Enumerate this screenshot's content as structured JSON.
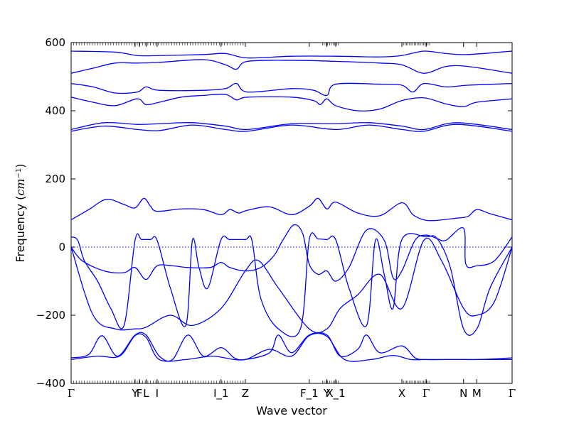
{
  "chart_data": {
    "type": "line",
    "title": "",
    "xlabel": "Wave vector",
    "ylabel_main": "Frequency (",
    "ylabel_unit": "cm",
    "ylabel_exp": "−1",
    "ylabel_close": ")",
    "ylim": [
      -400,
      600
    ],
    "yticks": [
      -400,
      -200,
      0,
      200,
      400,
      600
    ],
    "ytick_labels": [
      "−400",
      "−200",
      "0",
      "200",
      "400",
      "600"
    ],
    "grid": false,
    "line_color": "#0000ff",
    "zero_line_color": "#0000ff",
    "xlim": [
      0,
      20
    ],
    "high_symmetry_points": [
      {
        "label": "Γ",
        "x": 0
      },
      {
        "label": "Y",
        "x": 2.9
      },
      {
        "label": "F",
        "x": 3.1
      },
      {
        "label": "L",
        "x": 3.4
      },
      {
        "label": "I",
        "x": 3.9
      },
      {
        "label": "I_1",
        "x": 6.8
      },
      {
        "label": "Z",
        "x": 7.9
      },
      {
        "label": "F_1",
        "x": 10.8
      },
      {
        "label": "Y",
        "x": 11.6
      },
      {
        "label": "X_1",
        "x": 12.0
      },
      {
        "label": "X",
        "x": 15.0
      },
      {
        "label": "Γ",
        "x": 16.1
      },
      {
        "label": "N",
        "x": 17.8
      },
      {
        "label": "M",
        "x": 18.4
      },
      {
        "label": "Γ",
        "x": 20.0
      }
    ],
    "series": [
      {
        "values": [
          [
            0,
            575
          ],
          [
            2,
            572
          ],
          [
            3,
            562
          ],
          [
            4,
            562
          ],
          [
            6,
            565
          ],
          [
            7,
            568
          ],
          [
            8,
            555
          ],
          [
            10,
            560
          ],
          [
            12,
            560
          ],
          [
            14,
            558
          ],
          [
            15,
            562
          ],
          [
            16,
            575
          ],
          [
            17,
            568
          ],
          [
            18,
            565
          ],
          [
            20,
            575
          ]
        ]
      },
      {
        "values": [
          [
            0,
            510
          ],
          [
            1,
            525
          ],
          [
            2,
            540
          ],
          [
            3,
            540
          ],
          [
            4,
            542
          ],
          [
            6,
            550
          ],
          [
            7,
            535
          ],
          [
            7.5,
            522
          ],
          [
            8,
            545
          ],
          [
            10,
            548
          ],
          [
            12,
            545
          ],
          [
            14,
            540
          ],
          [
            15,
            535
          ],
          [
            16,
            510
          ],
          [
            17,
            530
          ],
          [
            18,
            530
          ],
          [
            20,
            510
          ]
        ]
      },
      {
        "values": [
          [
            0,
            480
          ],
          [
            1,
            470
          ],
          [
            2,
            452
          ],
          [
            3,
            455
          ],
          [
            3.4,
            470
          ],
          [
            4,
            460
          ],
          [
            6,
            460
          ],
          [
            7,
            465
          ],
          [
            7.5,
            480
          ],
          [
            8,
            455
          ],
          [
            10,
            465
          ],
          [
            11,
            460
          ],
          [
            11.6,
            445
          ],
          [
            12,
            478
          ],
          [
            14,
            478
          ],
          [
            15,
            475
          ],
          [
            15.5,
            455
          ],
          [
            16,
            480
          ],
          [
            17,
            470
          ],
          [
            18,
            475
          ],
          [
            20,
            480
          ]
        ]
      },
      {
        "values": [
          [
            0,
            440
          ],
          [
            1,
            425
          ],
          [
            2,
            415
          ],
          [
            3,
            435
          ],
          [
            3.4,
            418
          ],
          [
            4,
            425
          ],
          [
            5,
            440
          ],
          [
            6,
            445
          ],
          [
            7,
            448
          ],
          [
            7.5,
            432
          ],
          [
            8,
            440
          ],
          [
            10,
            440
          ],
          [
            11,
            430
          ],
          [
            11.3,
            418
          ],
          [
            11.6,
            435
          ],
          [
            12,
            415
          ],
          [
            13,
            400
          ],
          [
            14,
            405
          ],
          [
            15,
            430
          ],
          [
            16,
            438
          ],
          [
            17,
            420
          ],
          [
            17.8,
            412
          ],
          [
            18.4,
            425
          ],
          [
            20,
            435
          ]
        ]
      },
      {
        "values": [
          [
            0,
            345
          ],
          [
            1.5,
            365
          ],
          [
            3,
            360
          ],
          [
            4,
            362
          ],
          [
            5.5,
            365
          ],
          [
            7,
            355
          ],
          [
            8,
            345
          ],
          [
            10,
            362
          ],
          [
            12,
            362
          ],
          [
            13.5,
            365
          ],
          [
            15,
            355
          ],
          [
            16,
            345
          ],
          [
            17.5,
            365
          ],
          [
            20,
            345
          ]
        ]
      },
      {
        "values": [
          [
            0,
            340
          ],
          [
            1.5,
            355
          ],
          [
            3,
            345
          ],
          [
            4,
            342
          ],
          [
            5.5,
            358
          ],
          [
            7,
            345
          ],
          [
            8,
            340
          ],
          [
            10,
            358
          ],
          [
            12,
            345
          ],
          [
            13.5,
            358
          ],
          [
            15,
            345
          ],
          [
            16,
            340
          ],
          [
            17.5,
            360
          ],
          [
            20,
            340
          ]
        ]
      },
      {
        "values": [
          [
            0,
            80
          ],
          [
            0.8,
            110
          ],
          [
            1.6,
            140
          ],
          [
            2.4,
            125
          ],
          [
            2.9,
            115
          ],
          [
            3.3,
            143
          ],
          [
            3.6,
            120
          ],
          [
            3.9,
            105
          ],
          [
            5,
            112
          ],
          [
            6,
            110
          ],
          [
            6.8,
            95
          ],
          [
            7.2,
            110
          ],
          [
            7.6,
            100
          ],
          [
            8,
            108
          ],
          [
            9,
            118
          ],
          [
            10,
            95
          ],
          [
            10.8,
            120
          ],
          [
            11.2,
            143
          ],
          [
            11.6,
            112
          ],
          [
            12,
            132
          ],
          [
            13,
            100
          ],
          [
            14,
            92
          ],
          [
            15,
            130
          ],
          [
            15.5,
            95
          ],
          [
            16,
            80
          ],
          [
            16.5,
            78
          ],
          [
            17.5,
            85
          ],
          [
            18,
            90
          ],
          [
            18.4,
            110
          ],
          [
            19,
            98
          ],
          [
            20,
            80
          ]
        ]
      },
      {
        "values": [
          [
            0,
            30
          ],
          [
            0.3,
            20
          ],
          [
            0.6,
            -40
          ],
          [
            1.2,
            -100
          ],
          [
            1.8,
            -180
          ],
          [
            2.4,
            -230
          ],
          [
            2.9,
            20
          ],
          [
            3.2,
            22
          ],
          [
            3.6,
            22
          ],
          [
            3.9,
            20
          ],
          [
            4.5,
            -120
          ],
          [
            5.2,
            -230
          ],
          [
            5.5,
            20
          ],
          [
            5.8,
            -60
          ],
          [
            6.2,
            -120
          ],
          [
            6.8,
            22
          ],
          [
            7.2,
            22
          ],
          [
            7.9,
            22
          ],
          [
            8.2,
            20
          ],
          [
            8.6,
            -150
          ],
          [
            9.4,
            -240
          ],
          [
            10.4,
            -240
          ],
          [
            10.8,
            22
          ],
          [
            11.2,
            24
          ],
          [
            11.6,
            22
          ],
          [
            12,
            22
          ],
          [
            12.6,
            -120
          ],
          [
            13.4,
            -230
          ],
          [
            13.8,
            20
          ],
          [
            14.2,
            -80
          ],
          [
            14.6,
            -180
          ],
          [
            15,
            22
          ],
          [
            16.1,
            30
          ],
          [
            16.6,
            25
          ],
          [
            17.2,
            -60
          ],
          [
            17.8,
            -240
          ],
          [
            18.4,
            -240
          ],
          [
            19,
            -120
          ],
          [
            20,
            0
          ]
        ]
      },
      {
        "values": [
          [
            0,
            0
          ],
          [
            1,
            -200
          ],
          [
            2,
            -240
          ],
          [
            2.9,
            -240
          ],
          [
            3.4,
            -235
          ],
          [
            4.5,
            -200
          ],
          [
            5.5,
            -230
          ],
          [
            6.8,
            -180
          ],
          [
            7.9,
            -70
          ],
          [
            8.5,
            -40
          ],
          [
            9.4,
            -120
          ],
          [
            10.8,
            -240
          ],
          [
            11.6,
            -240
          ],
          [
            12.2,
            -180
          ],
          [
            13,
            -140
          ],
          [
            14,
            -80
          ],
          [
            15,
            -180
          ],
          [
            16,
            20
          ],
          [
            16.8,
            -40
          ],
          [
            17.8,
            -180
          ],
          [
            18.4,
            -200
          ],
          [
            19.2,
            -160
          ],
          [
            20,
            0
          ]
        ]
      },
      {
        "values": [
          [
            0,
            0
          ],
          [
            0.5,
            -40
          ],
          [
            1.5,
            -70
          ],
          [
            2.4,
            -75
          ],
          [
            2.9,
            -60
          ],
          [
            3.4,
            -95
          ],
          [
            3.9,
            -55
          ],
          [
            4.6,
            -55
          ],
          [
            5.3,
            -60
          ],
          [
            6.3,
            -60
          ],
          [
            6.8,
            -45
          ],
          [
            7.2,
            -60
          ],
          [
            7.9,
            -70
          ],
          [
            8.6,
            -60
          ],
          [
            9.2,
            -25
          ],
          [
            9.6,
            20
          ],
          [
            10.1,
            65
          ],
          [
            10.5,
            40
          ],
          [
            10.8,
            -50
          ],
          [
            11.2,
            -80
          ],
          [
            11.6,
            -70
          ],
          [
            12,
            -100
          ],
          [
            12.6,
            -60
          ],
          [
            13.4,
            50
          ],
          [
            14.2,
            20
          ],
          [
            14.6,
            -90
          ],
          [
            15,
            -70
          ],
          [
            15.6,
            20
          ],
          [
            16.1,
            35
          ],
          [
            16.6,
            25
          ],
          [
            17,
            20
          ],
          [
            17.8,
            55
          ],
          [
            17.9,
            -50
          ],
          [
            18.4,
            -55
          ],
          [
            19.2,
            -40
          ],
          [
            20,
            30
          ]
        ]
      },
      {
        "values": [
          [
            0,
            -325
          ],
          [
            0.8,
            -315
          ],
          [
            1.4,
            -260
          ],
          [
            2.1,
            -320
          ],
          [
            2.9,
            -258
          ],
          [
            3.4,
            -258
          ],
          [
            4,
            -320
          ],
          [
            4.6,
            -330
          ],
          [
            5.3,
            -258
          ],
          [
            6,
            -320
          ],
          [
            6.8,
            -295
          ],
          [
            7.4,
            -325
          ],
          [
            7.9,
            -330
          ],
          [
            9,
            -310
          ],
          [
            9.4,
            -258
          ],
          [
            10,
            -310
          ],
          [
            10.8,
            -258
          ],
          [
            11.6,
            -258
          ],
          [
            12.2,
            -320
          ],
          [
            13,
            -300
          ],
          [
            13.4,
            -258
          ],
          [
            14,
            -310
          ],
          [
            15,
            -290
          ],
          [
            15.6,
            -325
          ],
          [
            16.1,
            -330
          ],
          [
            17,
            -330
          ],
          [
            17.8,
            -330
          ],
          [
            18.4,
            -330
          ],
          [
            19.2,
            -328
          ],
          [
            20,
            -325
          ]
        ]
      },
      {
        "values": [
          [
            0,
            -330
          ],
          [
            1.2,
            -320
          ],
          [
            2.2,
            -320
          ],
          [
            2.9,
            -260
          ],
          [
            3.4,
            -265
          ],
          [
            4,
            -330
          ],
          [
            5.2,
            -330
          ],
          [
            6.4,
            -320
          ],
          [
            7.4,
            -330
          ],
          [
            8,
            -328
          ],
          [
            9,
            -300
          ],
          [
            10,
            -320
          ],
          [
            10.8,
            -260
          ],
          [
            11.6,
            -262
          ],
          [
            12.4,
            -330
          ],
          [
            13.6,
            -330
          ],
          [
            14.6,
            -318
          ],
          [
            15.4,
            -330
          ],
          [
            16.1,
            -330
          ],
          [
            18,
            -330
          ],
          [
            20,
            -330
          ]
        ]
      }
    ]
  }
}
